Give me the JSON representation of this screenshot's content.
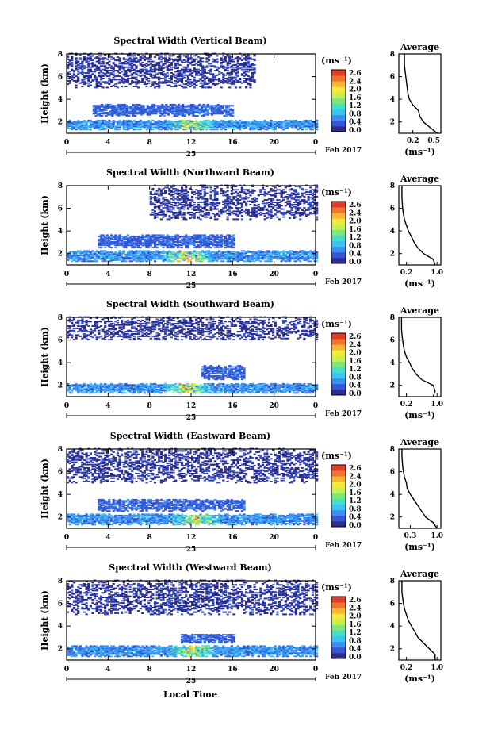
{
  "figure": {
    "x_ticks": [
      "0",
      "4",
      "8",
      "12",
      "16",
      "20",
      "0"
    ],
    "date_day": "25",
    "date_label": "Feb 2017",
    "x_axis_label": "Local Time",
    "y_axis_label": "Height (km)",
    "y_ticks": [
      "2",
      "4",
      "6",
      "8"
    ],
    "colorbar_unit": "(ms⁻¹)",
    "colorbar_ticks": [
      "2.6",
      "2.4",
      "2.0",
      "1.6",
      "1.2",
      "0.8",
      "0.4",
      "0.0"
    ],
    "colorbar_colors": [
      "#2d2d8c",
      "#3656d6",
      "#3c8ff2",
      "#3cc4f2",
      "#45e0c8",
      "#7de87a",
      "#c8f04a",
      "#f4e83c",
      "#f6b632",
      "#f2742e",
      "#e23b28"
    ],
    "profile_title": "Average",
    "profile_y_ticks": [
      "2",
      "4",
      "6",
      "8"
    ],
    "profile_unit": "(ms⁻¹)"
  },
  "chart_data": [
    {
      "type": "heatmap",
      "title": "Spectral Width (Vertical Beam)",
      "xlabel": "",
      "ylabel": "Height (km)",
      "xlim": [
        0,
        24
      ],
      "ylim": [
        1,
        8
      ],
      "z_unit": "ms⁻¹",
      "zlim": [
        0.0,
        2.6
      ],
      "layers": [
        {
          "height_range_km": [
            1.3,
            2.2
          ],
          "time_range_h": [
            0,
            24
          ],
          "typical_width": 0.6,
          "max_width": 2.4,
          "max_time_h": 12
        },
        {
          "height_range_km": [
            2.5,
            3.6
          ],
          "time_range_h": [
            2.5,
            16
          ],
          "typical_width": 0.4
        },
        {
          "height_range_km": [
            5.0,
            8.0
          ],
          "time_range_h": [
            0,
            18
          ],
          "typical_width": 0.2
        }
      ],
      "profile": {
        "title": "Average",
        "xlabel": "(ms⁻¹)",
        "x_ticks": [
          "0.2",
          "0.5"
        ],
        "xlim": [
          0.0,
          0.6
        ],
        "height_km": [
          1.0,
          1.5,
          2.0,
          2.5,
          3.0,
          3.5,
          4.0,
          4.5,
          5.0,
          5.5,
          6.0,
          6.5,
          7.0,
          7.5,
          8.0
        ],
        "width": [
          0.55,
          0.45,
          0.35,
          0.3,
          0.28,
          0.2,
          0.15,
          0.13,
          0.12,
          0.11,
          0.1,
          0.09,
          0.08,
          0.08,
          0.08
        ]
      }
    },
    {
      "type": "heatmap",
      "title": "Spectral Width (Northward Beam)",
      "xlabel": "",
      "ylabel": "Height (km)",
      "xlim": [
        0,
        24
      ],
      "ylim": [
        1,
        8
      ],
      "z_unit": "ms⁻¹",
      "zlim": [
        0.0,
        2.6
      ],
      "layers": [
        {
          "height_range_km": [
            1.3,
            2.3
          ],
          "time_range_h": [
            0,
            24
          ],
          "typical_width": 0.6,
          "max_width": 2.6,
          "max_time_h": 11.5
        },
        {
          "height_range_km": [
            2.5,
            3.7
          ],
          "time_range_h": [
            3,
            16
          ],
          "typical_width": 0.4
        },
        {
          "height_range_km": [
            5.0,
            8.0
          ],
          "time_range_h": [
            8,
            24
          ],
          "typical_width": 0.2
        }
      ],
      "profile": {
        "title": "Average",
        "xlabel": "(ms⁻¹)",
        "x_ticks": [
          "0.2",
          "1.0"
        ],
        "xlim": [
          0.0,
          1.1
        ],
        "height_km": [
          1.0,
          1.5,
          2.0,
          2.5,
          3.0,
          3.5,
          4.0,
          4.5,
          5.0,
          5.5,
          6.0,
          6.5,
          7.0,
          7.5,
          8.0
        ],
        "width": [
          0.95,
          0.9,
          0.65,
          0.5,
          0.4,
          0.33,
          0.25,
          0.2,
          0.15,
          0.12,
          0.1,
          0.09,
          0.08,
          0.08,
          0.08
        ]
      }
    },
    {
      "type": "heatmap",
      "title": "Spectral Width (Southward Beam)",
      "xlabel": "",
      "ylabel": "Height (km)",
      "xlim": [
        0,
        24
      ],
      "ylim": [
        1,
        8
      ],
      "z_unit": "ms⁻¹",
      "zlim": [
        0.0,
        2.6
      ],
      "layers": [
        {
          "height_range_km": [
            1.3,
            2.2
          ],
          "time_range_h": [
            0,
            24
          ],
          "typical_width": 0.6,
          "max_width": 2.4,
          "max_time_h": 11.5
        },
        {
          "height_range_km": [
            2.5,
            3.8
          ],
          "time_range_h": [
            13,
            17
          ],
          "typical_width": 0.4
        },
        {
          "height_range_km": [
            6.0,
            8.0
          ],
          "time_range_h": [
            0,
            24
          ],
          "typical_width": 0.2
        }
      ],
      "profile": {
        "title": "Average",
        "xlabel": "(ms⁻¹)",
        "x_ticks": [
          "0.2",
          "1.0"
        ],
        "xlim": [
          0.0,
          1.1
        ],
        "height_km": [
          1.0,
          1.5,
          2.0,
          2.5,
          3.0,
          3.5,
          4.0,
          4.5,
          5.0,
          5.5,
          6.0,
          6.5,
          7.0,
          7.5,
          8.0
        ],
        "width": [
          0.9,
          0.95,
          0.9,
          0.6,
          0.45,
          0.35,
          0.28,
          0.2,
          0.15,
          0.12,
          0.1,
          0.08,
          0.07,
          0.07,
          0.07
        ]
      }
    },
    {
      "type": "heatmap",
      "title": "Spectral Width (Eastward Beam)",
      "xlabel": "",
      "ylabel": "Height (km)",
      "xlim": [
        0,
        24
      ],
      "ylim": [
        1,
        8
      ],
      "z_unit": "ms⁻¹",
      "zlim": [
        0.0,
        2.6
      ],
      "layers": [
        {
          "height_range_km": [
            1.3,
            2.3
          ],
          "time_range_h": [
            0,
            24
          ],
          "typical_width": 0.6,
          "max_width": 2.2,
          "max_time_h": 12.5
        },
        {
          "height_range_km": [
            2.5,
            3.6
          ],
          "time_range_h": [
            3,
            17
          ],
          "typical_width": 0.4
        },
        {
          "height_range_km": [
            5.0,
            8.0
          ],
          "time_range_h": [
            0,
            24
          ],
          "typical_width": 0.2
        }
      ],
      "profile": {
        "title": "Average",
        "xlabel": "(ms⁻¹)",
        "x_ticks": [
          "0.3",
          "1.0"
        ],
        "xlim": [
          0.0,
          1.1
        ],
        "height_km": [
          1.0,
          1.5,
          2.0,
          2.5,
          3.0,
          3.5,
          4.0,
          4.5,
          5.0,
          5.5,
          6.0,
          6.5,
          7.0,
          7.5,
          8.0
        ],
        "width": [
          1.0,
          0.9,
          0.7,
          0.6,
          0.5,
          0.4,
          0.3,
          0.22,
          0.2,
          0.15,
          0.12,
          0.1,
          0.09,
          0.08,
          0.08
        ]
      }
    },
    {
      "type": "heatmap",
      "title": "Spectral Width (Westward Beam)",
      "xlabel": "Local Time",
      "ylabel": "Height (km)",
      "xlim": [
        0,
        24
      ],
      "ylim": [
        1,
        8
      ],
      "z_unit": "ms⁻¹",
      "zlim": [
        0.0,
        2.6
      ],
      "layers": [
        {
          "height_range_km": [
            1.3,
            2.3
          ],
          "time_range_h": [
            0,
            24
          ],
          "typical_width": 0.6,
          "max_width": 2.2,
          "max_time_h": 12
        },
        {
          "height_range_km": [
            2.5,
            3.3
          ],
          "time_range_h": [
            11,
            16
          ],
          "typical_width": 0.4
        },
        {
          "height_range_km": [
            5.0,
            8.0
          ],
          "time_range_h": [
            0,
            24
          ],
          "typical_width": 0.2
        }
      ],
      "profile": {
        "title": "Average",
        "xlabel": "(ms⁻¹)",
        "x_ticks": [
          "0.2",
          "1.0"
        ],
        "xlim": [
          0.0,
          1.1
        ],
        "height_km": [
          1.0,
          1.5,
          2.0,
          2.5,
          3.0,
          3.5,
          4.0,
          4.5,
          5.0,
          5.5,
          6.0,
          6.5,
          7.0,
          7.5,
          8.0
        ],
        "width": [
          0.95,
          0.95,
          0.8,
          0.65,
          0.5,
          0.42,
          0.33,
          0.25,
          0.2,
          0.15,
          0.12,
          0.1,
          0.08,
          0.08,
          0.08
        ]
      }
    }
  ]
}
